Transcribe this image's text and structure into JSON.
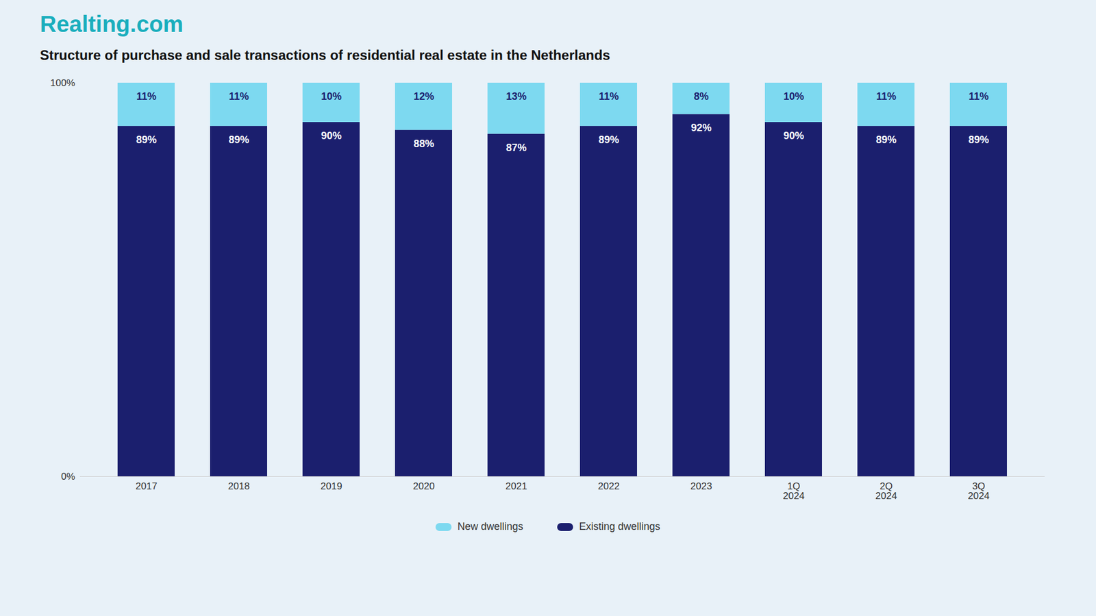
{
  "chart_data": {
    "type": "bar",
    "title": "Structure of purchase and sale transactions of residential real estate in the Netherlands",
    "annotations": [
      {
        "text": "Realting.com",
        "color": "#1AAEBD"
      }
    ],
    "categories": [
      "2017",
      "2018",
      "2019",
      "2020",
      "2021",
      "2022",
      "2023",
      "1Q\n2024",
      "2Q\n2024",
      "3Q\n2024"
    ],
    "series": [
      {
        "name": "New dwellings",
        "color": "#7DD9F0",
        "values": [
          11,
          11,
          10,
          12,
          13,
          11,
          8,
          10,
          11,
          11
        ],
        "value_labels": [
          "11%",
          "11%",
          "10%",
          "12%",
          "13%",
          "11%",
          "8%",
          "10%",
          "11%",
          "11%"
        ]
      },
      {
        "name": "Existing dwellings",
        "color": "#1B1F6E",
        "values": [
          89,
          89,
          90,
          88,
          87,
          89,
          92,
          90,
          89,
          89
        ],
        "value_labels": [
          "89%",
          "89%",
          "90%",
          "88%",
          "87%",
          "89%",
          "92%",
          "90%",
          "89%",
          "89%"
        ]
      }
    ],
    "stacked": true,
    "data_labels": true,
    "ylim": [
      0,
      100
    ],
    "yticks": [
      {
        "value": 0,
        "label": "0%"
      },
      {
        "value": 100,
        "label": "100%"
      }
    ],
    "grid": false,
    "legend": "bottom"
  }
}
